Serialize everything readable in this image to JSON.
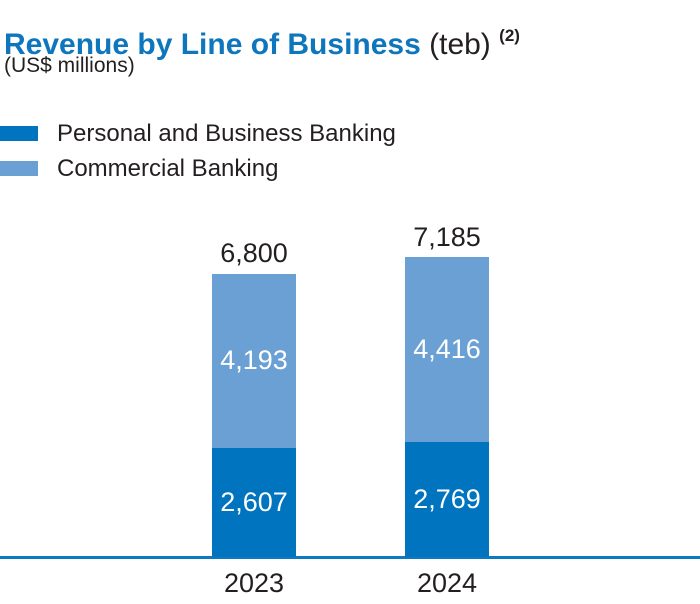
{
  "header": {
    "title": "Revenue by Line of Business",
    "title_suffix": " (teb)",
    "footnote_marker": "(2)",
    "subtitle": "(US$ millions)"
  },
  "legend": [
    {
      "label": "Personal and Business Banking",
      "color": "#0074be"
    },
    {
      "label": "Commercial Banking",
      "color": "#6ba0d5"
    }
  ],
  "colors": {
    "brand_blue": "#0d76bc",
    "series_dark": "#0074be",
    "series_light": "#6ba0d5",
    "axis_line": "#0c79c1",
    "text": "#231f20",
    "value_label": "#ffffff"
  },
  "chart_data": {
    "type": "bar",
    "stacked": true,
    "title": "Revenue by Line of Business (teb)",
    "unit": "US$ millions",
    "categories": [
      "2023",
      "2024"
    ],
    "series": [
      {
        "name": "Personal and Business Banking",
        "color": "#0074be",
        "values": [
          2607,
          2769
        ]
      },
      {
        "name": "Commercial Banking",
        "color": "#6ba0d5",
        "values": [
          4193,
          4416
        ]
      }
    ],
    "totals": [
      6800,
      7185
    ],
    "value_labels_shown": true,
    "grid": false,
    "legend_position": "top-left",
    "axis_labels_position": "below-baseline"
  }
}
